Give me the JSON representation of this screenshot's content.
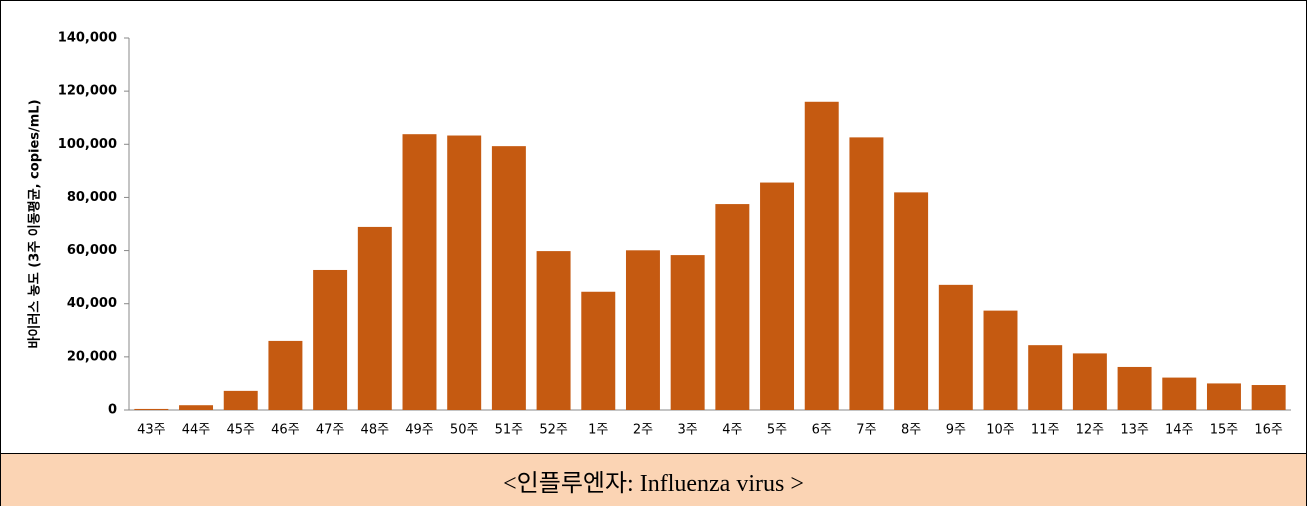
{
  "chart_data": {
    "type": "bar",
    "y_label": "바이러스 농도 (3주 이동평균, copies/mL)",
    "categories": [
      "43주",
      "44주",
      "45주",
      "46주",
      "47주",
      "48주",
      "49주",
      "50주",
      "51주",
      "52주",
      "1주",
      "2주",
      "3주",
      "4주",
      "5주",
      "6주",
      "7주",
      "8주",
      "9주",
      "10주",
      "11주",
      "12주",
      "13주",
      "14주",
      "15주",
      "16주"
    ],
    "values": [
      400,
      1800,
      7200,
      26000,
      52700,
      68900,
      103800,
      103300,
      99300,
      59800,
      44500,
      60100,
      58300,
      77500,
      85600,
      116000,
      102600,
      81900,
      47100,
      37400,
      24400,
      21300,
      16200,
      12200,
      10000,
      9400
    ],
    "color": "#c55a11",
    "ylim": [
      0,
      140000
    ],
    "yticks": [
      0,
      {
        "value": 20000,
        "label": "20,000"
      },
      {
        "value": 40000,
        "label": "40,000"
      },
      {
        "value": 60000,
        "label": "60,000"
      },
      {
        "value": 80000,
        "label": "80,000"
      },
      {
        "value": 100000,
        "label": "100,000"
      },
      {
        "value": 120000,
        "label": "120,000"
      },
      {
        "value": 140000,
        "label": "140,000"
      }
    ],
    "grid": false
  },
  "caption": "<인플루엔자: Influenza virus >"
}
